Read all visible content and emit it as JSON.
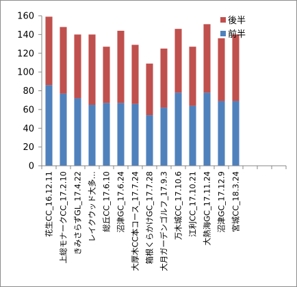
{
  "chart_data": {
    "type": "bar",
    "stacked": true,
    "categories": [
      "花生CC_16.12.11",
      "上総モナークCC_17.2.10",
      "きみさらずGL_17.4.22",
      "レイクウッド大多…",
      "総丘CC_17.6.10",
      "沼津GC_17.6.24",
      "大厚木CC本コース_17.7.24",
      "箱根くらかけGC_17.7.28",
      "大月ガーデンゴルフ_17.9.3",
      "万木城CC_17.10.6",
      "江利CC_17.10.21",
      "大熱海GC_17.11.24",
      "沼津GC_17.12.9",
      "宮城CC_18.3.24",
      "",
      "",
      ""
    ],
    "series": [
      {
        "name": "前半",
        "color": "#4f81bd",
        "values": [
          86,
          77,
          72,
          65,
          67,
          67,
          66,
          54,
          62,
          78,
          64,
          78,
          69,
          69,
          null,
          null,
          null
        ]
      },
      {
        "name": "後半",
        "color": "#c0504d",
        "values": [
          73,
          71,
          68,
          75,
          60,
          77,
          63,
          55,
          63,
          68,
          63,
          73,
          67,
          71,
          null,
          null,
          null
        ]
      }
    ],
    "ylim": [
      0,
      160
    ],
    "yticks": [
      0,
      20,
      40,
      60,
      80,
      100,
      120,
      140,
      160
    ],
    "grid": false,
    "legend": "top-right",
    "title": "",
    "xlabel": "",
    "ylabel": ""
  }
}
